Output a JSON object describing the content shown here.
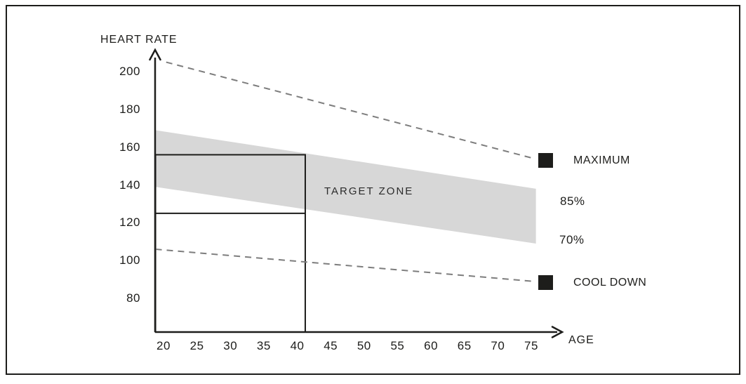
{
  "figure": {
    "background": "#ffffff",
    "border_color": "#1d1d1b",
    "ink_color": "#1d1d1b",
    "dashed_line_color": "#7d7d7d",
    "band_color": "#d7d7d7"
  },
  "chart_data": {
    "type": "line",
    "title": "",
    "xlabel": "AGE",
    "ylabel": "HEART RATE",
    "x_ticks": [
      20,
      25,
      30,
      35,
      40,
      45,
      50,
      55,
      60,
      65,
      70,
      75
    ],
    "y_ticks": [
      200,
      180,
      160,
      140,
      120,
      100,
      80
    ],
    "xlim": [
      18.8,
      80
    ],
    "ylim": [
      60,
      215
    ],
    "grid": false,
    "band": {
      "label": "TARGET ZONE",
      "upper_label": "85%",
      "lower_label": "70%",
      "color": "#d7d7d7",
      "upper": [
        {
          "age": 18.8,
          "hr": 169
        },
        {
          "age": 75.7,
          "hr": 138
        }
      ],
      "lower": [
        {
          "age": 18.8,
          "hr": 139
        },
        {
          "age": 75.7,
          "hr": 109
        }
      ]
    },
    "series": [
      {
        "name": "MAXIMUM",
        "style": "dashed",
        "color": "#7d7d7d",
        "marker": "black-square",
        "points": [
          {
            "age": 20.4,
            "hr": 205
          },
          {
            "age": 75.4,
            "hr": 154
          }
        ]
      },
      {
        "name": "COOL DOWN",
        "style": "dashed",
        "color": "#7d7d7d",
        "marker": "black-square",
        "points": [
          {
            "age": 18.8,
            "hr": 106
          },
          {
            "age": 75.4,
            "hr": 89
          }
        ]
      }
    ],
    "reference_box": {
      "age_start": 18.8,
      "age_end": 41.2,
      "hr_top": 156,
      "hr_divider": 125,
      "description": "example reading: target zone bounds for ~age 40"
    },
    "legend_position": "right"
  }
}
